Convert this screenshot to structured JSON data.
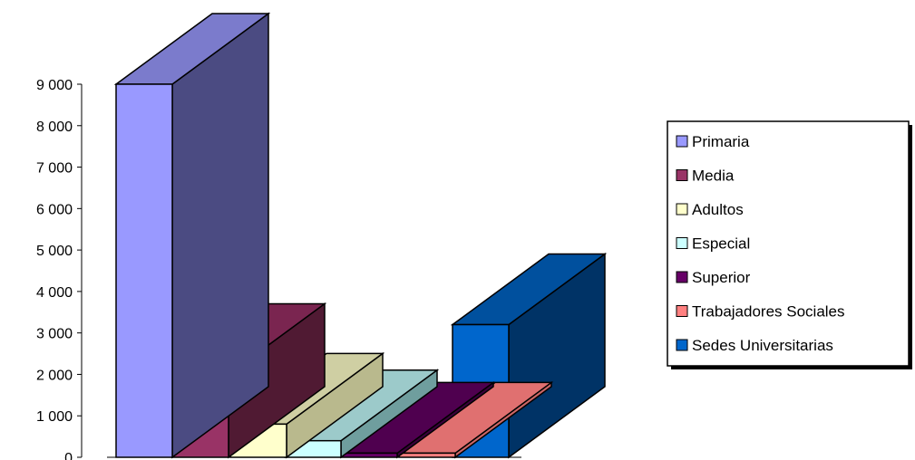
{
  "chart_data": {
    "type": "bar",
    "style": "3d-column",
    "title": "",
    "xlabel": "",
    "ylabel": "",
    "ylim": [
      0,
      9000
    ],
    "y_ticks": [
      "0",
      "1 000",
      "2 000",
      "3 000",
      "4 000",
      "5 000",
      "6 000",
      "7 000",
      "8 000",
      "9 000"
    ],
    "y_tick_values": [
      0,
      1000,
      2000,
      3000,
      4000,
      5000,
      6000,
      7000,
      8000,
      9000
    ],
    "grid": false,
    "legend_position": "right",
    "series": [
      {
        "name": "Primaria",
        "value": 9000,
        "colors": {
          "front": "#9999ff",
          "side": "#4b4b82",
          "top": "#7b7bcc"
        }
      },
      {
        "name": "Media",
        "value": 2000,
        "colors": {
          "front": "#993366",
          "side": "#501a33",
          "top": "#7a2550"
        }
      },
      {
        "name": "Adultos",
        "value": 800,
        "colors": {
          "front": "#ffffcc",
          "side": "#b9b98d",
          "top": "#cfcfa3"
        }
      },
      {
        "name": "Especial",
        "value": 400,
        "colors": {
          "front": "#ccffff",
          "side": "#6f9e9e",
          "top": "#9ccaca"
        }
      },
      {
        "name": "Superior",
        "value": 100,
        "colors": {
          "front": "#660066",
          "side": "#3a003a",
          "top": "#4f004f"
        }
      },
      {
        "name": "Trabajadores Sociales",
        "value": 100,
        "colors": {
          "front": "#ff8080",
          "side": "#cc6666",
          "top": "#e07070"
        }
      },
      {
        "name": "Sedes Universitarias",
        "value": 3200,
        "colors": {
          "front": "#0066cc",
          "side": "#003366",
          "top": "#00509e"
        }
      }
    ]
  }
}
